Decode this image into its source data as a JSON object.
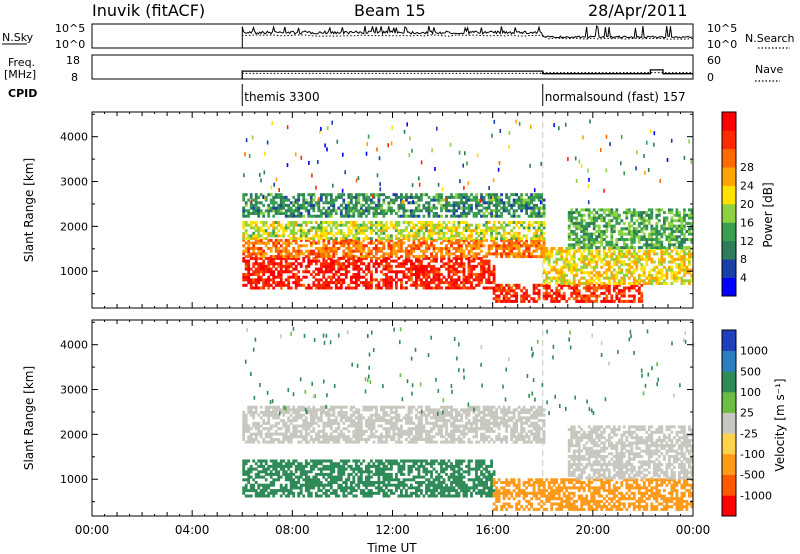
{
  "header": {
    "station": "Inuvik (fitACF)",
    "beam": "Beam 15",
    "date": "28/Apr/2011"
  },
  "chart_data": [
    {
      "type": "line",
      "panel": "noise",
      "left_label": "N.Sky",
      "right_label": "N.Search",
      "left_ticks": [
        "10^5",
        "10^0"
      ],
      "right_ticks": [
        "10^5",
        "10^0"
      ],
      "scale": "log",
      "series": [
        {
          "name": "N.Sky",
          "style": "solid"
        },
        {
          "name": "N.Search",
          "style": "dotted"
        }
      ],
      "x_range_hours": [
        0,
        24
      ],
      "data_start_hour": 6.0
    },
    {
      "type": "line",
      "panel": "frequency",
      "left_label_line1": "Freq.",
      "left_label_line2": "[MHz]",
      "right_label": "Nave",
      "left_ticks": [
        "18",
        "8"
      ],
      "right_ticks": [
        "60",
        "0"
      ],
      "ylim_freq": [
        8,
        18
      ],
      "ylim_nave": [
        0,
        60
      ],
      "series": [
        {
          "name": "Freq.",
          "style": "solid",
          "x": [
            6.0,
            18.0,
            18.0,
            22.3,
            22.3,
            22.8,
            22.8,
            24.0
          ],
          "y": [
            11.3,
            11.3,
            10.2,
            10.2,
            11.8,
            11.8,
            10.2,
            10.2
          ]
        },
        {
          "name": "Nave",
          "style": "dotted",
          "x": [
            6.0,
            18.0,
            18.0,
            24.0
          ],
          "y": [
            14,
            14,
            16,
            16
          ]
        }
      ]
    },
    {
      "type": "table",
      "panel": "cpid",
      "label": "CPID",
      "segments": [
        {
          "start_hour": 6.0,
          "label": "themis 3300"
        },
        {
          "start_hour": 18.0,
          "label": "normalsound (fast) 157"
        }
      ]
    },
    {
      "type": "heatmap",
      "panel": "power",
      "ylabel": "Slant Range [km]",
      "yticks": [
        1000,
        2000,
        3000,
        4000
      ],
      "ylim": [
        180,
        4550
      ],
      "colorbar_label": "Power [dB]",
      "colorbar_ticks": [
        "4",
        "8",
        "12",
        "16",
        "20",
        "24",
        "28"
      ],
      "colorbar_range": [
        0,
        30
      ],
      "colors": [
        "#0000ff",
        "#1a3fa8",
        "#2e7d5a",
        "#39a050",
        "#8fd241",
        "#ffe200",
        "#ffa300",
        "#ff6a00",
        "#ff2a00",
        "#ff0000"
      ],
      "regions": [
        {
          "t": [
            6.0,
            16.0
          ],
          "range_km": [
            600,
            1300
          ],
          "value": 27
        },
        {
          "t": [
            6.0,
            18.0
          ],
          "range_km": [
            1300,
            1700
          ],
          "value": 22
        },
        {
          "t": [
            6.0,
            18.0
          ],
          "range_km": [
            1700,
            2100
          ],
          "value": 15
        },
        {
          "t": [
            6.0,
            18.0
          ],
          "range_km": [
            2200,
            2700
          ],
          "value": 9
        },
        {
          "t": [
            16.0,
            22.0
          ],
          "range_km": [
            300,
            700
          ],
          "value": 26
        },
        {
          "t": [
            18.0,
            24.0
          ],
          "range_km": [
            700,
            1500
          ],
          "value": 17
        },
        {
          "t": [
            19.0,
            24.0
          ],
          "range_km": [
            1500,
            2400
          ],
          "value": 11
        }
      ]
    },
    {
      "type": "heatmap",
      "panel": "velocity",
      "ylabel": "Slant Range [km]",
      "yticks": [
        1000,
        2000,
        3000,
        4000
      ],
      "ylim": [
        180,
        4550
      ],
      "colorbar_label": "Velocity [m s⁻¹]",
      "colorbar_ticks": [
        "1000",
        "500",
        "100",
        "25",
        "-25",
        "-100",
        "-500",
        "-1000"
      ],
      "colors": [
        "#1f3fbf",
        "#2b7fbf",
        "#2e8b57",
        "#6dbd45",
        "#c8c8c0",
        "#ffd24d",
        "#ff9a1a",
        "#ff5a00",
        "#ff0000"
      ],
      "regions": [
        {
          "t": [
            6.0,
            16.0
          ],
          "range_km": [
            600,
            1400
          ],
          "value": 300
        },
        {
          "t": [
            6.0,
            18.0
          ],
          "range_km": [
            1800,
            2600
          ],
          "value": 0
        },
        {
          "t": [
            16.0,
            24.0
          ],
          "range_km": [
            300,
            1000
          ],
          "value": -200
        },
        {
          "t": [
            19.0,
            24.0
          ],
          "range_km": [
            1000,
            2200
          ],
          "value": -20
        }
      ]
    }
  ],
  "xaxis": {
    "ticks": [
      "00:00",
      "04:00",
      "08:00",
      "12:00",
      "16:00",
      "20:00",
      "00:00"
    ],
    "tick_hours": [
      0,
      4,
      8,
      12,
      16,
      20,
      24
    ],
    "label": "Time UT"
  },
  "colors": {
    "gap_line": "#c8c8c8"
  }
}
